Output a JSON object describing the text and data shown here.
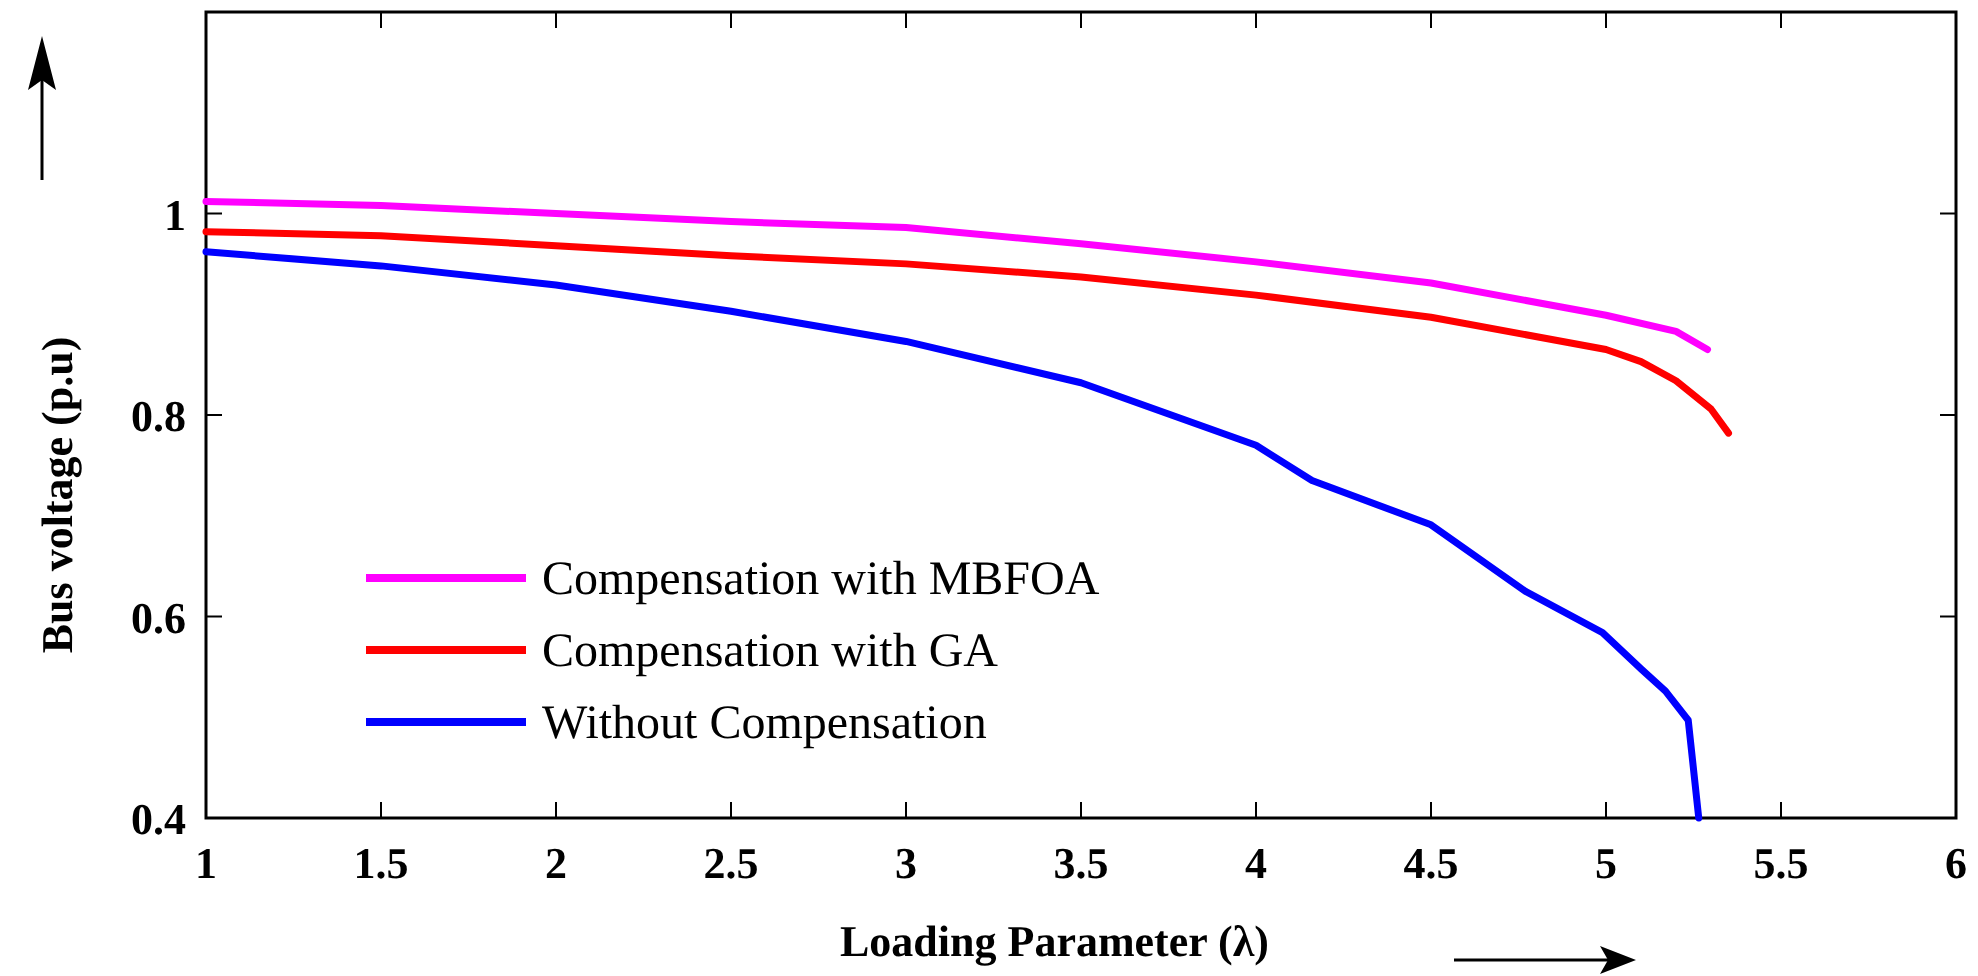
{
  "chart_data": {
    "type": "line",
    "xlabel": "Loading Parameter (λ)",
    "ylabel": "Bus voltage (p.u)",
    "xlim": [
      1,
      6
    ],
    "xticks": [
      1,
      1.5,
      2,
      2.5,
      3,
      3.5,
      4,
      4.5,
      5,
      5.5,
      6
    ],
    "ylim": [
      0.4,
      1.2
    ],
    "yticks": [
      0.4,
      0.6,
      0.8,
      1
    ],
    "legend": "bottom left",
    "grid": false,
    "marker": "none",
    "line_style": "solid",
    "series": [
      {
        "name": "Compensation with MBFOA",
        "color": "#ff00ff",
        "x": [
          1,
          1.5,
          2,
          2.5,
          3,
          3.5,
          4,
          4.5,
          5,
          5.2,
          5.29
        ],
        "values": [
          1.012,
          1.008,
          1.0,
          0.992,
          0.986,
          0.97,
          0.952,
          0.931,
          0.899,
          0.883,
          0.865
        ]
      },
      {
        "name": "Compensation with GA",
        "color": "#ff0000",
        "x": [
          1,
          1.5,
          2,
          2.5,
          3,
          3.5,
          4,
          4.5,
          5,
          5.1,
          5.2,
          5.3,
          5.35
        ],
        "values": [
          0.982,
          0.978,
          0.968,
          0.958,
          0.95,
          0.937,
          0.919,
          0.897,
          0.865,
          0.853,
          0.834,
          0.806,
          0.782
        ]
      },
      {
        "name": "Without Compensation",
        "color": "#0000ff",
        "x": [
          1,
          1.5,
          2,
          2.5,
          3,
          3.5,
          4,
          4.16,
          4.5,
          4.77,
          4.99,
          5.1,
          5.17,
          5.235,
          5.265
        ],
        "values": [
          0.962,
          0.948,
          0.929,
          0.903,
          0.873,
          0.832,
          0.77,
          0.735,
          0.691,
          0.625,
          0.584,
          0.548,
          0.526,
          0.497,
          0.4
        ]
      }
    ]
  }
}
